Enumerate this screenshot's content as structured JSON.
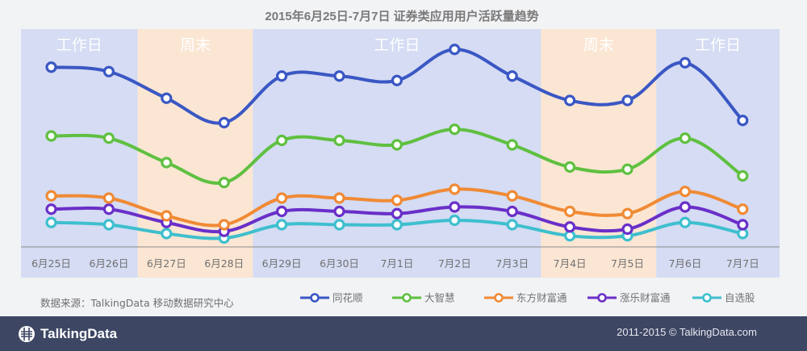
{
  "chart_data": {
    "type": "line",
    "title": "2015年6月25日-7月7日  证券类应用用户活跃量趋势",
    "categories": [
      "6月25日",
      "6月26日",
      "6月27日",
      "6月28日",
      "6月29日",
      "6月30日",
      "7月1日",
      "7月2日",
      "7月3日",
      "7月4日",
      "7月5日",
      "7月6日",
      "7月7日"
    ],
    "periods": [
      {
        "label": "工作日",
        "type": "weekday",
        "start": 0,
        "end": 1
      },
      {
        "label": "周末",
        "type": "weekend",
        "start": 2,
        "end": 3
      },
      {
        "label": "工作日",
        "type": "weekday",
        "start": 4,
        "end": 8
      },
      {
        "label": "周末",
        "type": "weekend",
        "start": 9,
        "end": 10
      },
      {
        "label": "工作日",
        "type": "weekday",
        "start": 11,
        "end": 12
      }
    ],
    "ylim": [
      0,
      100
    ],
    "grid": false,
    "legend_position": "bottom",
    "series": [
      {
        "name": "同花顺",
        "color": "#3a57c4",
        "values": [
          81,
          79,
          67,
          56,
          77,
          77,
          75,
          89,
          77,
          66,
          66,
          83,
          57
        ]
      },
      {
        "name": "大智慧",
        "color": "#5fc040",
        "values": [
          50,
          49,
          38,
          29,
          48,
          48,
          46,
          53,
          46,
          36,
          35,
          49,
          32
        ]
      },
      {
        "name": "东方财富通",
        "color": "#f08a35",
        "values": [
          23,
          22,
          14,
          10,
          22,
          22,
          21,
          26,
          23,
          16,
          15,
          25,
          17
        ]
      },
      {
        "name": "涨乐财富通",
        "color": "#6a2fc8",
        "values": [
          17,
          17,
          11,
          7,
          16,
          16,
          15,
          18,
          16,
          9,
          8,
          18,
          10
        ]
      },
      {
        "name": "自选股",
        "color": "#3ebfce",
        "values": [
          11,
          10,
          6,
          4,
          10,
          10,
          10,
          12,
          10,
          5,
          5,
          11,
          6
        ]
      }
    ]
  },
  "colors": {
    "weekday_band": "#d5dcf3",
    "weekend_band": "#fbe6d3",
    "band_label": "#ffffff",
    "axis": "#8c8c8c",
    "text": "#707070"
  },
  "source_note": "数据来源：TalkingData 移动数据研究中心",
  "footer": {
    "brand": "TalkingData",
    "copyright": "2011-2015 © TalkingData.com"
  }
}
